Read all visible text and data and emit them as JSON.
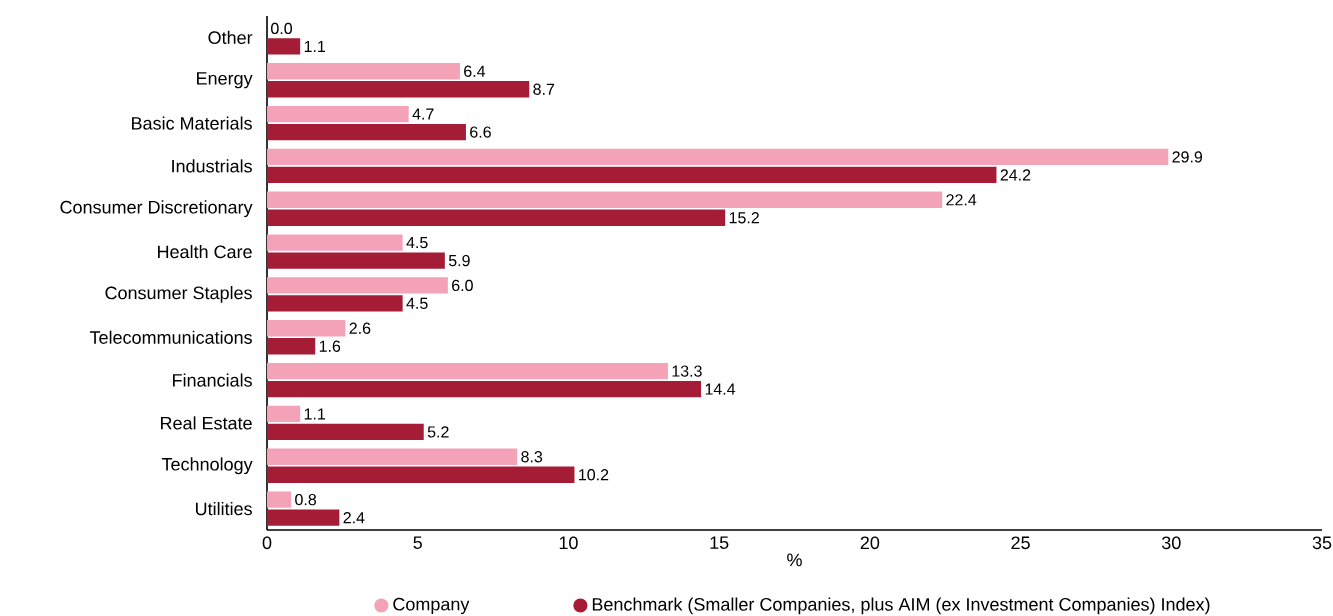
{
  "chart_data": {
    "type": "bar",
    "orientation": "horizontal",
    "xlabel": "%",
    "categories": [
      "Other",
      "Energy",
      "Basic Materials",
      "Industrials",
      "Consumer Discretionary",
      "Health Care",
      "Consumer Staples",
      "Telecommunications",
      "Financials",
      "Real Estate",
      "Technology",
      "Utilities"
    ],
    "series": [
      {
        "name": "Company",
        "color": "#f4a2b7",
        "values": [
          0.0,
          6.4,
          4.7,
          29.9,
          22.4,
          4.5,
          6.0,
          2.6,
          13.3,
          1.1,
          8.3,
          0.8
        ],
        "value_labels": [
          "0.0",
          "6.4",
          "4.7",
          "29.9",
          "22.4",
          "4.5",
          "6.0",
          "2.6",
          "13.3",
          "1.1",
          "8.3",
          "0.8"
        ]
      },
      {
        "name": "Benchmark (Smaller Companies, plus AIM (ex Investment Companies) Index)",
        "color": "#a51c36",
        "values": [
          1.1,
          8.7,
          6.6,
          24.2,
          15.2,
          5.9,
          4.5,
          1.6,
          14.4,
          5.2,
          10.2,
          2.4
        ]
      }
    ],
    "xlim": [
      0,
      35
    ],
    "xticks": [
      0,
      5,
      10,
      15,
      20,
      25,
      30,
      35
    ],
    "data_labels": true,
    "grid": false,
    "legend": "bottom"
  }
}
